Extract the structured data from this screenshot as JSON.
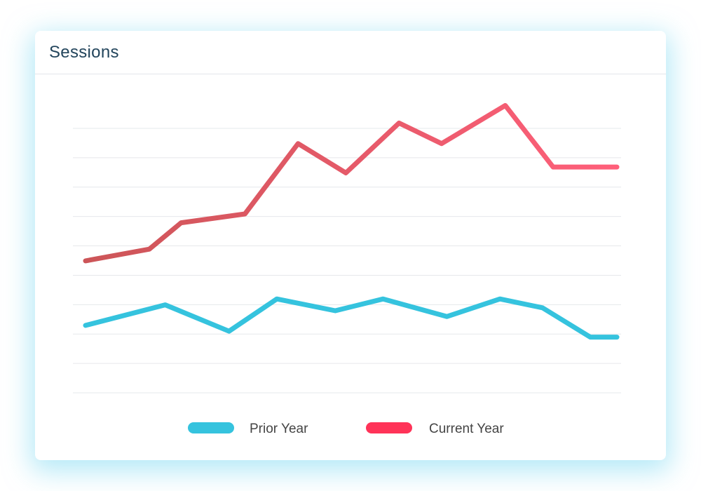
{
  "card": {
    "title": "Sessions"
  },
  "chart_data": {
    "type": "line",
    "title": "Sessions",
    "xlabel": "",
    "ylabel": "",
    "grid": true,
    "gridlines": 10,
    "ylim": [
      0,
      100
    ],
    "legend_placement": "bottom-center",
    "series": [
      {
        "name": "Prior Year",
        "color": "#35c3de",
        "x": [
          0,
          0.15,
          0.27,
          0.36,
          0.47,
          0.56,
          0.68,
          0.78,
          0.86,
          0.95,
          1.0
        ],
        "values": [
          23,
          30,
          21,
          32,
          28,
          32,
          26,
          32,
          29,
          19,
          19
        ]
      },
      {
        "name": "Current Year",
        "color": "#ff3358",
        "gradient_start": "#cc5558",
        "gradient_end": "#ff5f7a",
        "x": [
          0,
          0.12,
          0.18,
          0.3,
          0.4,
          0.49,
          0.59,
          0.67,
          0.79,
          0.88,
          1.0
        ],
        "values": [
          45,
          49,
          58,
          61,
          85,
          75,
          92,
          85,
          98,
          77,
          77
        ]
      }
    ]
  }
}
